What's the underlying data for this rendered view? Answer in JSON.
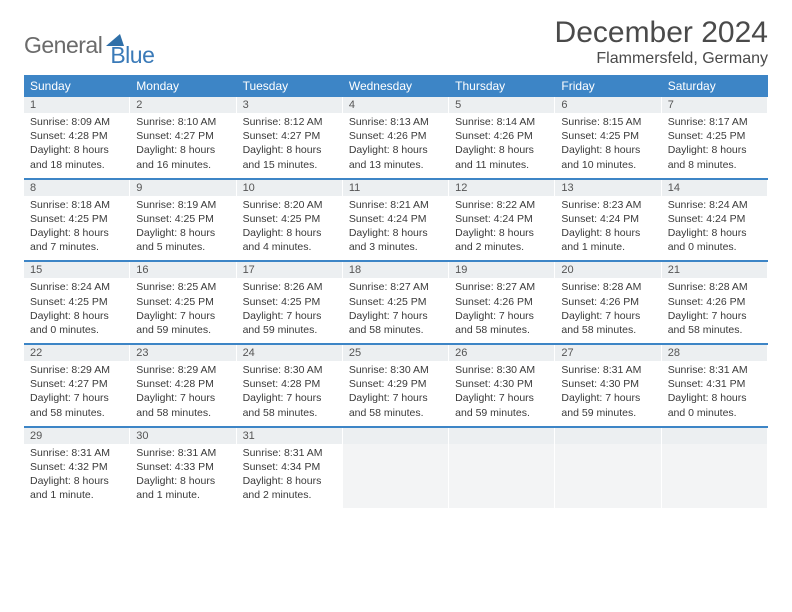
{
  "brand": {
    "text1": "General",
    "text2": "Blue",
    "tri_color": "#2f6fa8"
  },
  "title": "December 2024",
  "location": "Flammersfeld, Germany",
  "colors": {
    "header_bg": "#3d85c6",
    "header_text": "#ffffff",
    "daynum_bg": "#eceff1",
    "sep_bar": "#3d85c6",
    "body_text": "#3a3a3a"
  },
  "dow": [
    "Sunday",
    "Monday",
    "Tuesday",
    "Wednesday",
    "Thursday",
    "Friday",
    "Saturday"
  ],
  "weeks": [
    [
      {
        "n": "1",
        "sr": "8:09 AM",
        "ss": "4:28 PM",
        "dl": "8 hours and 18 minutes."
      },
      {
        "n": "2",
        "sr": "8:10 AM",
        "ss": "4:27 PM",
        "dl": "8 hours and 16 minutes."
      },
      {
        "n": "3",
        "sr": "8:12 AM",
        "ss": "4:27 PM",
        "dl": "8 hours and 15 minutes."
      },
      {
        "n": "4",
        "sr": "8:13 AM",
        "ss": "4:26 PM",
        "dl": "8 hours and 13 minutes."
      },
      {
        "n": "5",
        "sr": "8:14 AM",
        "ss": "4:26 PM",
        "dl": "8 hours and 11 minutes."
      },
      {
        "n": "6",
        "sr": "8:15 AM",
        "ss": "4:25 PM",
        "dl": "8 hours and 10 minutes."
      },
      {
        "n": "7",
        "sr": "8:17 AM",
        "ss": "4:25 PM",
        "dl": "8 hours and 8 minutes."
      }
    ],
    [
      {
        "n": "8",
        "sr": "8:18 AM",
        "ss": "4:25 PM",
        "dl": "8 hours and 7 minutes."
      },
      {
        "n": "9",
        "sr": "8:19 AM",
        "ss": "4:25 PM",
        "dl": "8 hours and 5 minutes."
      },
      {
        "n": "10",
        "sr": "8:20 AM",
        "ss": "4:25 PM",
        "dl": "8 hours and 4 minutes."
      },
      {
        "n": "11",
        "sr": "8:21 AM",
        "ss": "4:24 PM",
        "dl": "8 hours and 3 minutes."
      },
      {
        "n": "12",
        "sr": "8:22 AM",
        "ss": "4:24 PM",
        "dl": "8 hours and 2 minutes."
      },
      {
        "n": "13",
        "sr": "8:23 AM",
        "ss": "4:24 PM",
        "dl": "8 hours and 1 minute."
      },
      {
        "n": "14",
        "sr": "8:24 AM",
        "ss": "4:24 PM",
        "dl": "8 hours and 0 minutes."
      }
    ],
    [
      {
        "n": "15",
        "sr": "8:24 AM",
        "ss": "4:25 PM",
        "dl": "8 hours and 0 minutes."
      },
      {
        "n": "16",
        "sr": "8:25 AM",
        "ss": "4:25 PM",
        "dl": "7 hours and 59 minutes."
      },
      {
        "n": "17",
        "sr": "8:26 AM",
        "ss": "4:25 PM",
        "dl": "7 hours and 59 minutes."
      },
      {
        "n": "18",
        "sr": "8:27 AM",
        "ss": "4:25 PM",
        "dl": "7 hours and 58 minutes."
      },
      {
        "n": "19",
        "sr": "8:27 AM",
        "ss": "4:26 PM",
        "dl": "7 hours and 58 minutes."
      },
      {
        "n": "20",
        "sr": "8:28 AM",
        "ss": "4:26 PM",
        "dl": "7 hours and 58 minutes."
      },
      {
        "n": "21",
        "sr": "8:28 AM",
        "ss": "4:26 PM",
        "dl": "7 hours and 58 minutes."
      }
    ],
    [
      {
        "n": "22",
        "sr": "8:29 AM",
        "ss": "4:27 PM",
        "dl": "7 hours and 58 minutes."
      },
      {
        "n": "23",
        "sr": "8:29 AM",
        "ss": "4:28 PM",
        "dl": "7 hours and 58 minutes."
      },
      {
        "n": "24",
        "sr": "8:30 AM",
        "ss": "4:28 PM",
        "dl": "7 hours and 58 minutes."
      },
      {
        "n": "25",
        "sr": "8:30 AM",
        "ss": "4:29 PM",
        "dl": "7 hours and 58 minutes."
      },
      {
        "n": "26",
        "sr": "8:30 AM",
        "ss": "4:30 PM",
        "dl": "7 hours and 59 minutes."
      },
      {
        "n": "27",
        "sr": "8:31 AM",
        "ss": "4:30 PM",
        "dl": "7 hours and 59 minutes."
      },
      {
        "n": "28",
        "sr": "8:31 AM",
        "ss": "4:31 PM",
        "dl": "8 hours and 0 minutes."
      }
    ],
    [
      {
        "n": "29",
        "sr": "8:31 AM",
        "ss": "4:32 PM",
        "dl": "8 hours and 1 minute."
      },
      {
        "n": "30",
        "sr": "8:31 AM",
        "ss": "4:33 PM",
        "dl": "8 hours and 1 minute."
      },
      {
        "n": "31",
        "sr": "8:31 AM",
        "ss": "4:34 PM",
        "dl": "8 hours and 2 minutes."
      },
      null,
      null,
      null,
      null
    ]
  ],
  "labels": {
    "sunrise": "Sunrise:",
    "sunset": "Sunset:",
    "daylight": "Daylight:"
  }
}
